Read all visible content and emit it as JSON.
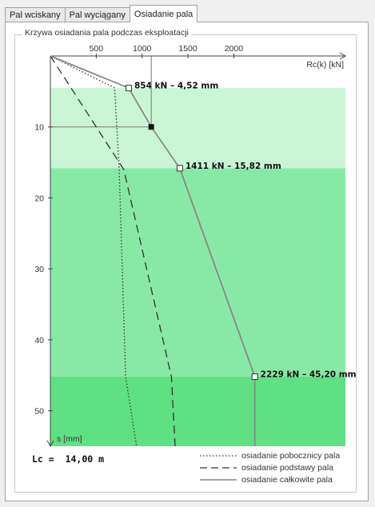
{
  "tabs": [
    {
      "label": "Pal wciskany",
      "active": false
    },
    {
      "label": "Pal wyciągany",
      "active": false
    },
    {
      "label": "Osiadanie pala",
      "active": true
    }
  ],
  "group_title": "Krzywa osiadania pala podczas eksploatacji",
  "chart_data": {
    "type": "line",
    "title": "Krzywa osiadania pala podczas eksploatacji",
    "xlabel": "Rc(k) [kN]",
    "ylabel": "s [mm]",
    "xlim": [
      0,
      2300
    ],
    "ylim": [
      0,
      55
    ],
    "x_ticks": [
      500,
      1000,
      1500,
      2000
    ],
    "x_tick_labels": [
      "500",
      "1000",
      "1500",
      "2000"
    ],
    "y_ticks": [
      10,
      20,
      30,
      40,
      50
    ],
    "y_tick_labels": [
      "10",
      "20",
      "30",
      "40",
      "50"
    ],
    "background_bands": [
      {
        "from": 0,
        "to": 4.52,
        "color": "#ffffff"
      },
      {
        "from": 4.52,
        "to": 15.82,
        "color": "#c9f5d4"
      },
      {
        "from": 15.82,
        "to": 45.2,
        "color": "#88e9a4"
      },
      {
        "from": 45.2,
        "to": 55,
        "color": "#5fe082"
      }
    ],
    "series": [
      {
        "name": "osiadanie pobocznicy pala",
        "style": "dotted",
        "points": [
          [
            0,
            0
          ],
          [
            700,
            4.5
          ],
          [
            750,
            15.82
          ],
          [
            820,
            45.2
          ],
          [
            940,
            55
          ]
        ]
      },
      {
        "name": "osiadanie podstawy pala",
        "style": "dashed",
        "points": [
          [
            0,
            0
          ],
          [
            800,
            16
          ],
          [
            1320,
            45.2
          ],
          [
            1360,
            55
          ]
        ]
      },
      {
        "name": "osiadanie całkowite pala",
        "style": "solid",
        "points": [
          [
            0,
            0
          ],
          [
            854,
            4.52
          ],
          [
            1100,
            10
          ],
          [
            1411,
            15.82
          ],
          [
            2229,
            45.2
          ],
          [
            2229,
            55
          ]
        ]
      }
    ],
    "marked_points": [
      {
        "x": 854,
        "y": 4.52,
        "label": "854 kN – 4,52 mm",
        "marker": "open-square"
      },
      {
        "x": 1100,
        "y": 10,
        "label": "",
        "marker": "filled-square"
      },
      {
        "x": 1411,
        "y": 15.82,
        "label": "1411 kN – 15,82 mm",
        "marker": "open-square"
      },
      {
        "x": 2229,
        "y": 45.2,
        "label": "2229 kN – 45,20 mm",
        "marker": "open-square"
      }
    ],
    "crosshair": {
      "x": 1100,
      "y": 10
    },
    "legend_position": "bottom-right",
    "grid": false
  },
  "lc_label": "Lc =",
  "lc_value": "14,00 m"
}
